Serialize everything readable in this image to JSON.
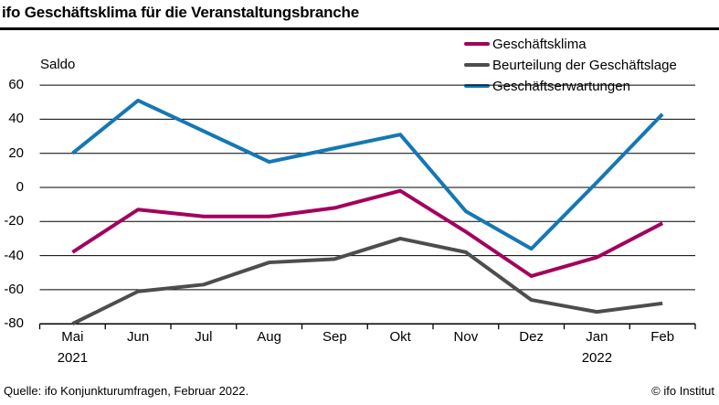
{
  "title": "ifo Geschäftsklima für die Veranstaltungsbranche",
  "footer": {
    "source": "Quelle: ifo Konjunkturumfragen, Februar 2022.",
    "copyright": "© ifo Institut"
  },
  "chart_data": {
    "type": "line",
    "title": "ifo Geschäftsklima für die Veranstaltungsbranche",
    "ylabel": "Saldo",
    "xlabel": "",
    "categories": [
      "Mai",
      "Jun",
      "Jul",
      "Aug",
      "Sep",
      "Okt",
      "Nov",
      "Dez",
      "Jan",
      "Feb"
    ],
    "year_labels": [
      {
        "text": "2021",
        "category_index": 0
      },
      {
        "text": "2022",
        "category_index": 8
      }
    ],
    "ylim": [
      -80,
      60
    ],
    "yticks": [
      60,
      40,
      20,
      0,
      -20,
      -40,
      -60,
      -80
    ],
    "grid": true,
    "legend_position": "top-right",
    "axis_color": "#000000",
    "series": [
      {
        "name": "Geschäftsklima",
        "color": "#a3005d",
        "values": [
          -38,
          -13,
          -17,
          -17,
          -12,
          -2,
          -26,
          -52,
          -41,
          -21
        ]
      },
      {
        "name": "Beurteilung der Geschäftslage",
        "color": "#4d4d4c",
        "values": [
          -80,
          -61,
          -57,
          -44,
          -42,
          -30,
          -38,
          -66,
          -73,
          -68
        ]
      },
      {
        "name": "Geschäftserwartungen",
        "color": "#1577b4",
        "values": [
          20,
          51,
          33,
          15,
          23,
          31,
          -14,
          -36,
          3,
          43
        ]
      }
    ]
  }
}
